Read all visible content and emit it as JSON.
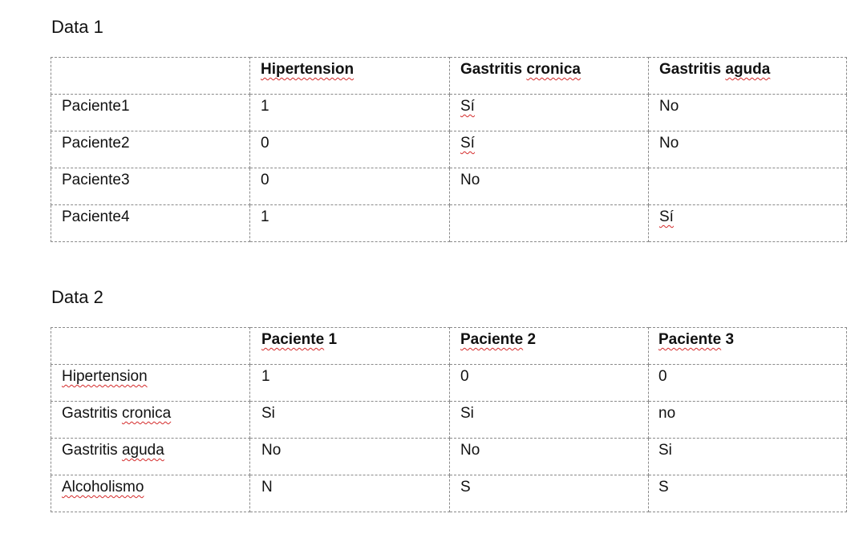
{
  "data1": {
    "heading": "Data 1",
    "headers": [
      "",
      "Hipertension",
      "Gastritis cronica",
      "Gastritis aguda"
    ],
    "rows": [
      [
        "Paciente1",
        "1",
        "Sí",
        "No"
      ],
      [
        "Paciente2",
        "0",
        "Sí",
        "No"
      ],
      [
        "Paciente3",
        "0",
        "No",
        ""
      ],
      [
        "Paciente4",
        "1",
        "",
        "Sí"
      ]
    ]
  },
  "data2": {
    "heading": "Data 2",
    "headers": [
      "",
      "Paciente 1",
      "Paciente 2",
      "Paciente 3"
    ],
    "rows": [
      [
        "Hipertension",
        "1",
        "0",
        "0"
      ],
      [
        "Gastritis cronica",
        "Si",
        "Si",
        "no"
      ],
      [
        "Gastritis aguda",
        "No",
        "No",
        "Si"
      ],
      [
        "Alcoholismo",
        "N",
        "S",
        "S"
      ]
    ]
  },
  "colors": {
    "squiggle": "#d42a2a",
    "border": "#8a8a8a"
  }
}
